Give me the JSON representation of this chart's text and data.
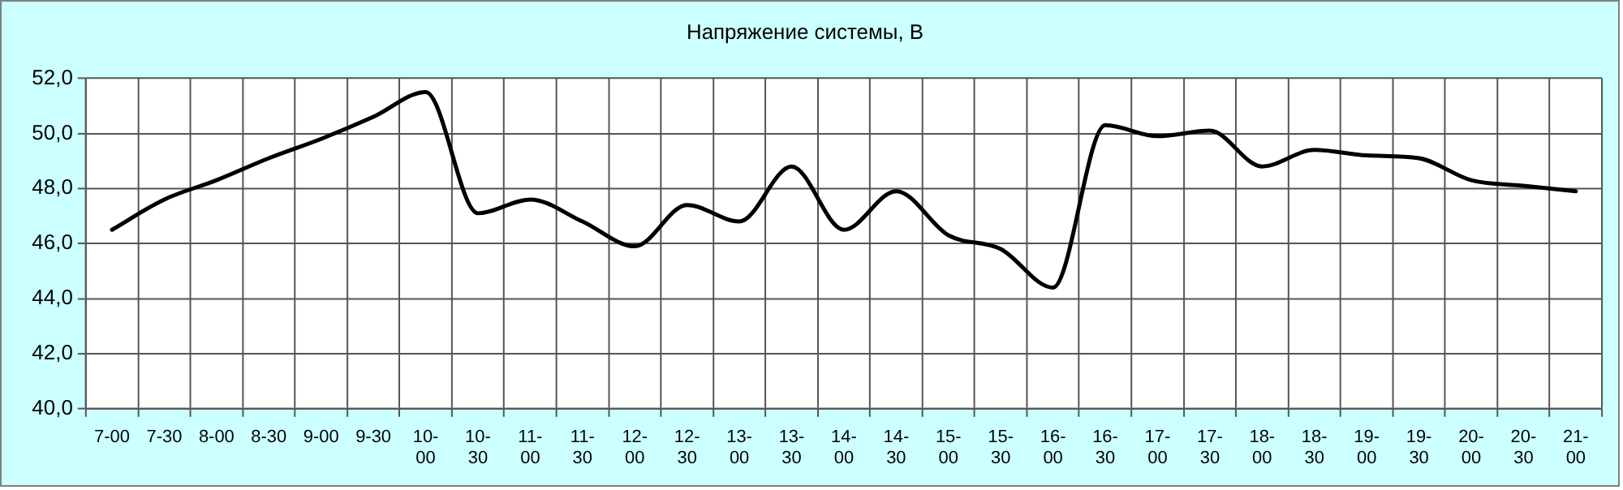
{
  "chart_data": {
    "type": "line",
    "title": "Напряжение системы, В",
    "categories": [
      "7-00",
      "7-30",
      "8-00",
      "8-30",
      "9-00",
      "9-30",
      "10-00",
      "10-30",
      "11-00",
      "11-30",
      "12-00",
      "12-30",
      "13-00",
      "13-30",
      "14-00",
      "14-30",
      "15-00",
      "15-30",
      "16-00",
      "16-30",
      "17-00",
      "17-30",
      "18-00",
      "18-30",
      "19-00",
      "19-30",
      "20-00",
      "20-30",
      "21-00"
    ],
    "series": [
      {
        "color": "#000000",
        "values": [
          46.5,
          47.6,
          48.3,
          49.1,
          49.8,
          50.6,
          51.5,
          47.1,
          47.6,
          46.8,
          45.9,
          47.4,
          46.8,
          48.8,
          46.5,
          47.9,
          46.3,
          45.8,
          44.4,
          50.3,
          49.9,
          50.1,
          48.8,
          49.4,
          49.2,
          49.1,
          48.3,
          48.1,
          47.9
        ]
      }
    ],
    "ylim": [
      40,
      52
    ],
    "yticks": [
      {
        "value": 40,
        "label": "40,0"
      },
      {
        "value": 42,
        "label": "42,0"
      },
      {
        "value": 44,
        "label": "44,0"
      },
      {
        "value": 46,
        "label": "46,0"
      },
      {
        "value": 48,
        "label": "48,0"
      },
      {
        "value": 50,
        "label": "50,0"
      },
      {
        "value": 52,
        "label": "52,0"
      }
    ],
    "grid": true,
    "legend": false,
    "marker": "none",
    "line_style": "solid"
  }
}
